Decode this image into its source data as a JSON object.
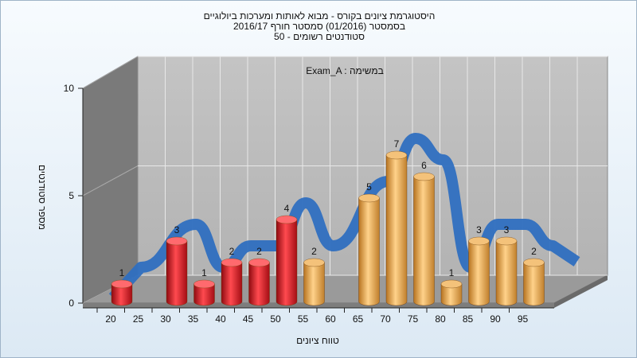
{
  "title_lines": [
    "היסטוגרמת ציונים בקורס - מבוא לאותות ומערכות ביולוגיים",
    "בסמסטר   (01/2016)  סמסטר חורף  2016/17",
    "סטודנטים רשומים - 50"
  ],
  "colors": {
    "low_bar": "#e0141c",
    "high_bar": "#e8a84a",
    "ribbon": "#2f6fc0"
  },
  "chart_data": {
    "type": "bar",
    "title": "היסטוגרמת ציונים בקורס - מבוא לאותות ומערכות ביולוגיים",
    "annotation": "Exam_A : במשימה",
    "xlabel": "טווח ציונים",
    "ylabel": "מספר סטודנטים",
    "ylim": [
      0,
      10
    ],
    "y_ticks": [
      "0",
      "5",
      "10"
    ],
    "x_ticks": [
      "20",
      "25",
      "30",
      "35",
      "40",
      "45",
      "50",
      "55",
      "60",
      "65",
      "70",
      "75",
      "80",
      "85",
      "90",
      "95"
    ],
    "bins": [
      20,
      30,
      35,
      40,
      45,
      50,
      55,
      65,
      70,
      75,
      80,
      85,
      90,
      95
    ],
    "values": [
      1,
      3,
      1,
      2,
      2,
      4,
      2,
      5,
      7,
      6,
      1,
      3,
      3,
      2
    ],
    "bar_groups": [
      "low",
      "low",
      "low",
      "low",
      "low",
      "low",
      "high",
      "high",
      "high",
      "high",
      "high",
      "high",
      "high",
      "high"
    ],
    "grid": true
  }
}
